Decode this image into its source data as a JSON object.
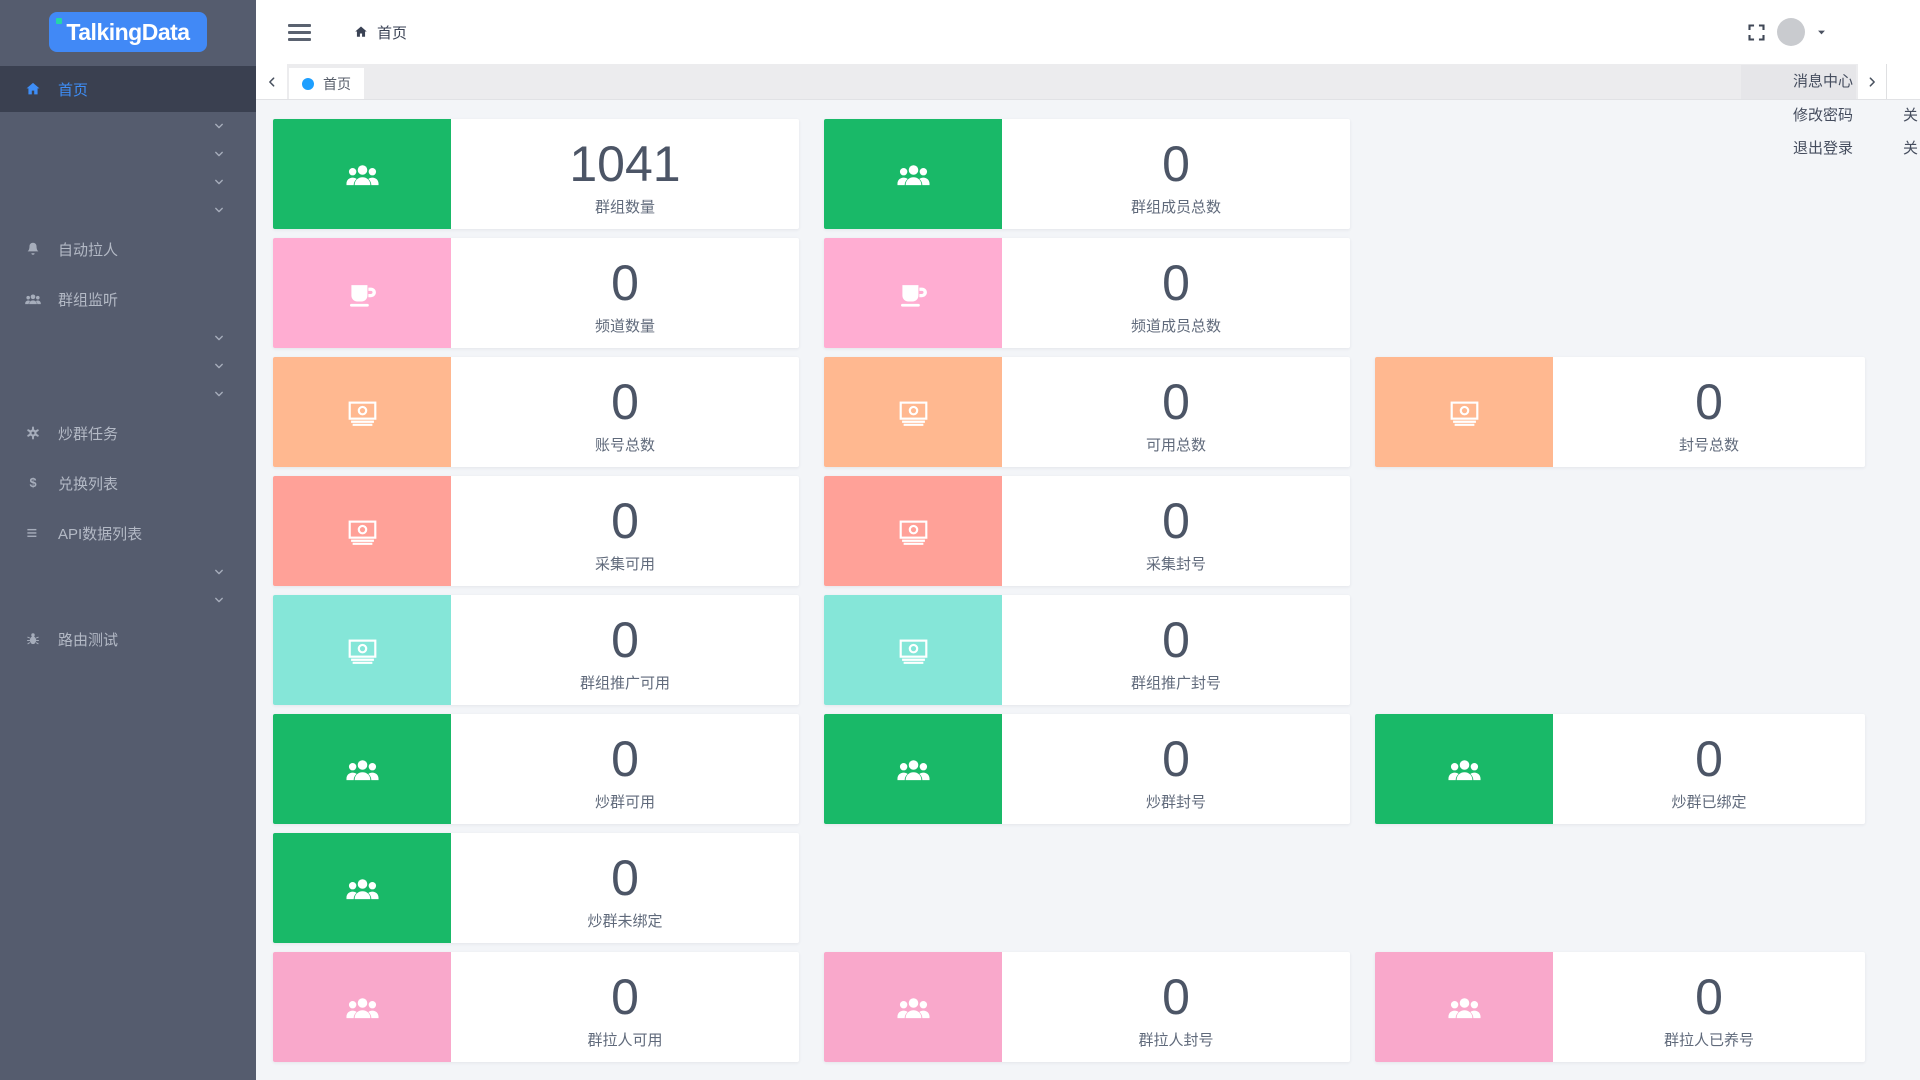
{
  "app": {
    "logo": "TalkingData"
  },
  "sidebar": {
    "items": [
      {
        "type": "item",
        "label": "首页",
        "icon": "home-icon",
        "active": true
      },
      {
        "type": "collapsed",
        "icon": "chevron-down-icon"
      },
      {
        "type": "collapsed",
        "icon": "chevron-down-icon"
      },
      {
        "type": "collapsed",
        "icon": "chevron-down-icon"
      },
      {
        "type": "collapsed",
        "icon": "chevron-down-icon"
      },
      {
        "type": "item",
        "label": "自动拉人",
        "icon": "bell-icon",
        "active": false
      },
      {
        "type": "item",
        "label": "群组监听",
        "icon": "users-icon",
        "active": false
      },
      {
        "type": "collapsed",
        "icon": "chevron-down-icon"
      },
      {
        "type": "collapsed",
        "icon": "chevron-down-icon"
      },
      {
        "type": "collapsed",
        "icon": "chevron-down-icon"
      },
      {
        "type": "item",
        "label": "炒群任务",
        "icon": "gear-icon",
        "active": false
      },
      {
        "type": "item",
        "label": "兑换列表",
        "icon": "dollar-icon",
        "active": false
      },
      {
        "type": "item",
        "label": "API数据列表",
        "icon": "list-icon",
        "active": false
      },
      {
        "type": "collapsed",
        "icon": "chevron-down-icon"
      },
      {
        "type": "collapsed",
        "icon": "chevron-down-icon"
      },
      {
        "type": "item",
        "label": "路由测试",
        "icon": "bug-icon",
        "active": false
      }
    ]
  },
  "topbar": {
    "breadcrumb": "首页"
  },
  "tabbar": {
    "active_tab": "首页"
  },
  "user_menu": {
    "items": [
      "消息中心",
      "修改密码",
      "退出登录"
    ]
  },
  "edge_menu": {
    "items": [
      "关",
      "关"
    ]
  },
  "colors": {
    "green": "#19b968",
    "pink": "#ffadd2",
    "orange": "#ffb890",
    "salmon": "#ffa198",
    "teal": "#85e6d8",
    "pink2": "#f9a8cb",
    "sidebar_bg": "#555c6e",
    "sidebar_active_bg": "#3a4050",
    "accent_blue": "#3e8ef7",
    "tab_dot_blue": "#1e9fff",
    "logo_blue": "#4189f6"
  },
  "cards": [
    {
      "value": "1041",
      "label": "群组数量",
      "color": "green",
      "icon": "users-icon",
      "col": 1,
      "row": 1
    },
    {
      "value": "0",
      "label": "群组成员总数",
      "color": "green",
      "icon": "users-icon",
      "col": 2,
      "row": 1
    },
    {
      "value": "0",
      "label": "频道数量",
      "color": "pink",
      "icon": "coffee-icon",
      "col": 1,
      "row": 2
    },
    {
      "value": "0",
      "label": "频道成员总数",
      "color": "pink",
      "icon": "coffee-icon",
      "col": 2,
      "row": 2
    },
    {
      "value": "0",
      "label": "账号总数",
      "color": "orange",
      "icon": "money-icon",
      "col": 1,
      "row": 3
    },
    {
      "value": "0",
      "label": "可用总数",
      "color": "orange",
      "icon": "money-icon",
      "col": 2,
      "row": 3
    },
    {
      "value": "0",
      "label": "封号总数",
      "color": "orange",
      "icon": "money-icon",
      "col": 3,
      "row": 3
    },
    {
      "value": "0",
      "label": "采集可用",
      "color": "salmon",
      "icon": "money-icon",
      "col": 1,
      "row": 4
    },
    {
      "value": "0",
      "label": "采集封号",
      "color": "salmon",
      "icon": "money-icon",
      "col": 2,
      "row": 4
    },
    {
      "value": "0",
      "label": "群组推广可用",
      "color": "teal",
      "icon": "money-icon",
      "col": 1,
      "row": 5
    },
    {
      "value": "0",
      "label": "群组推广封号",
      "color": "teal",
      "icon": "money-icon",
      "col": 2,
      "row": 5
    },
    {
      "value": "0",
      "label": "炒群可用",
      "color": "green",
      "icon": "users-icon",
      "col": 1,
      "row": 6
    },
    {
      "value": "0",
      "label": "炒群封号",
      "color": "green",
      "icon": "users-icon",
      "col": 2,
      "row": 6
    },
    {
      "value": "0",
      "label": "炒群已绑定",
      "color": "green",
      "icon": "users-icon",
      "col": 3,
      "row": 6
    },
    {
      "value": "0",
      "label": "炒群未绑定",
      "color": "green",
      "icon": "users-icon",
      "col": 1,
      "row": 7
    },
    {
      "value": "0",
      "label": "群拉人可用",
      "color": "pink2",
      "icon": "users-icon",
      "col": 1,
      "row": 8
    },
    {
      "value": "0",
      "label": "群拉人封号",
      "color": "pink2",
      "icon": "users-icon",
      "col": 2,
      "row": 8
    },
    {
      "value": "0",
      "label": "群拉人已养号",
      "color": "pink2",
      "icon": "users-icon",
      "col": 3,
      "row": 8
    }
  ]
}
